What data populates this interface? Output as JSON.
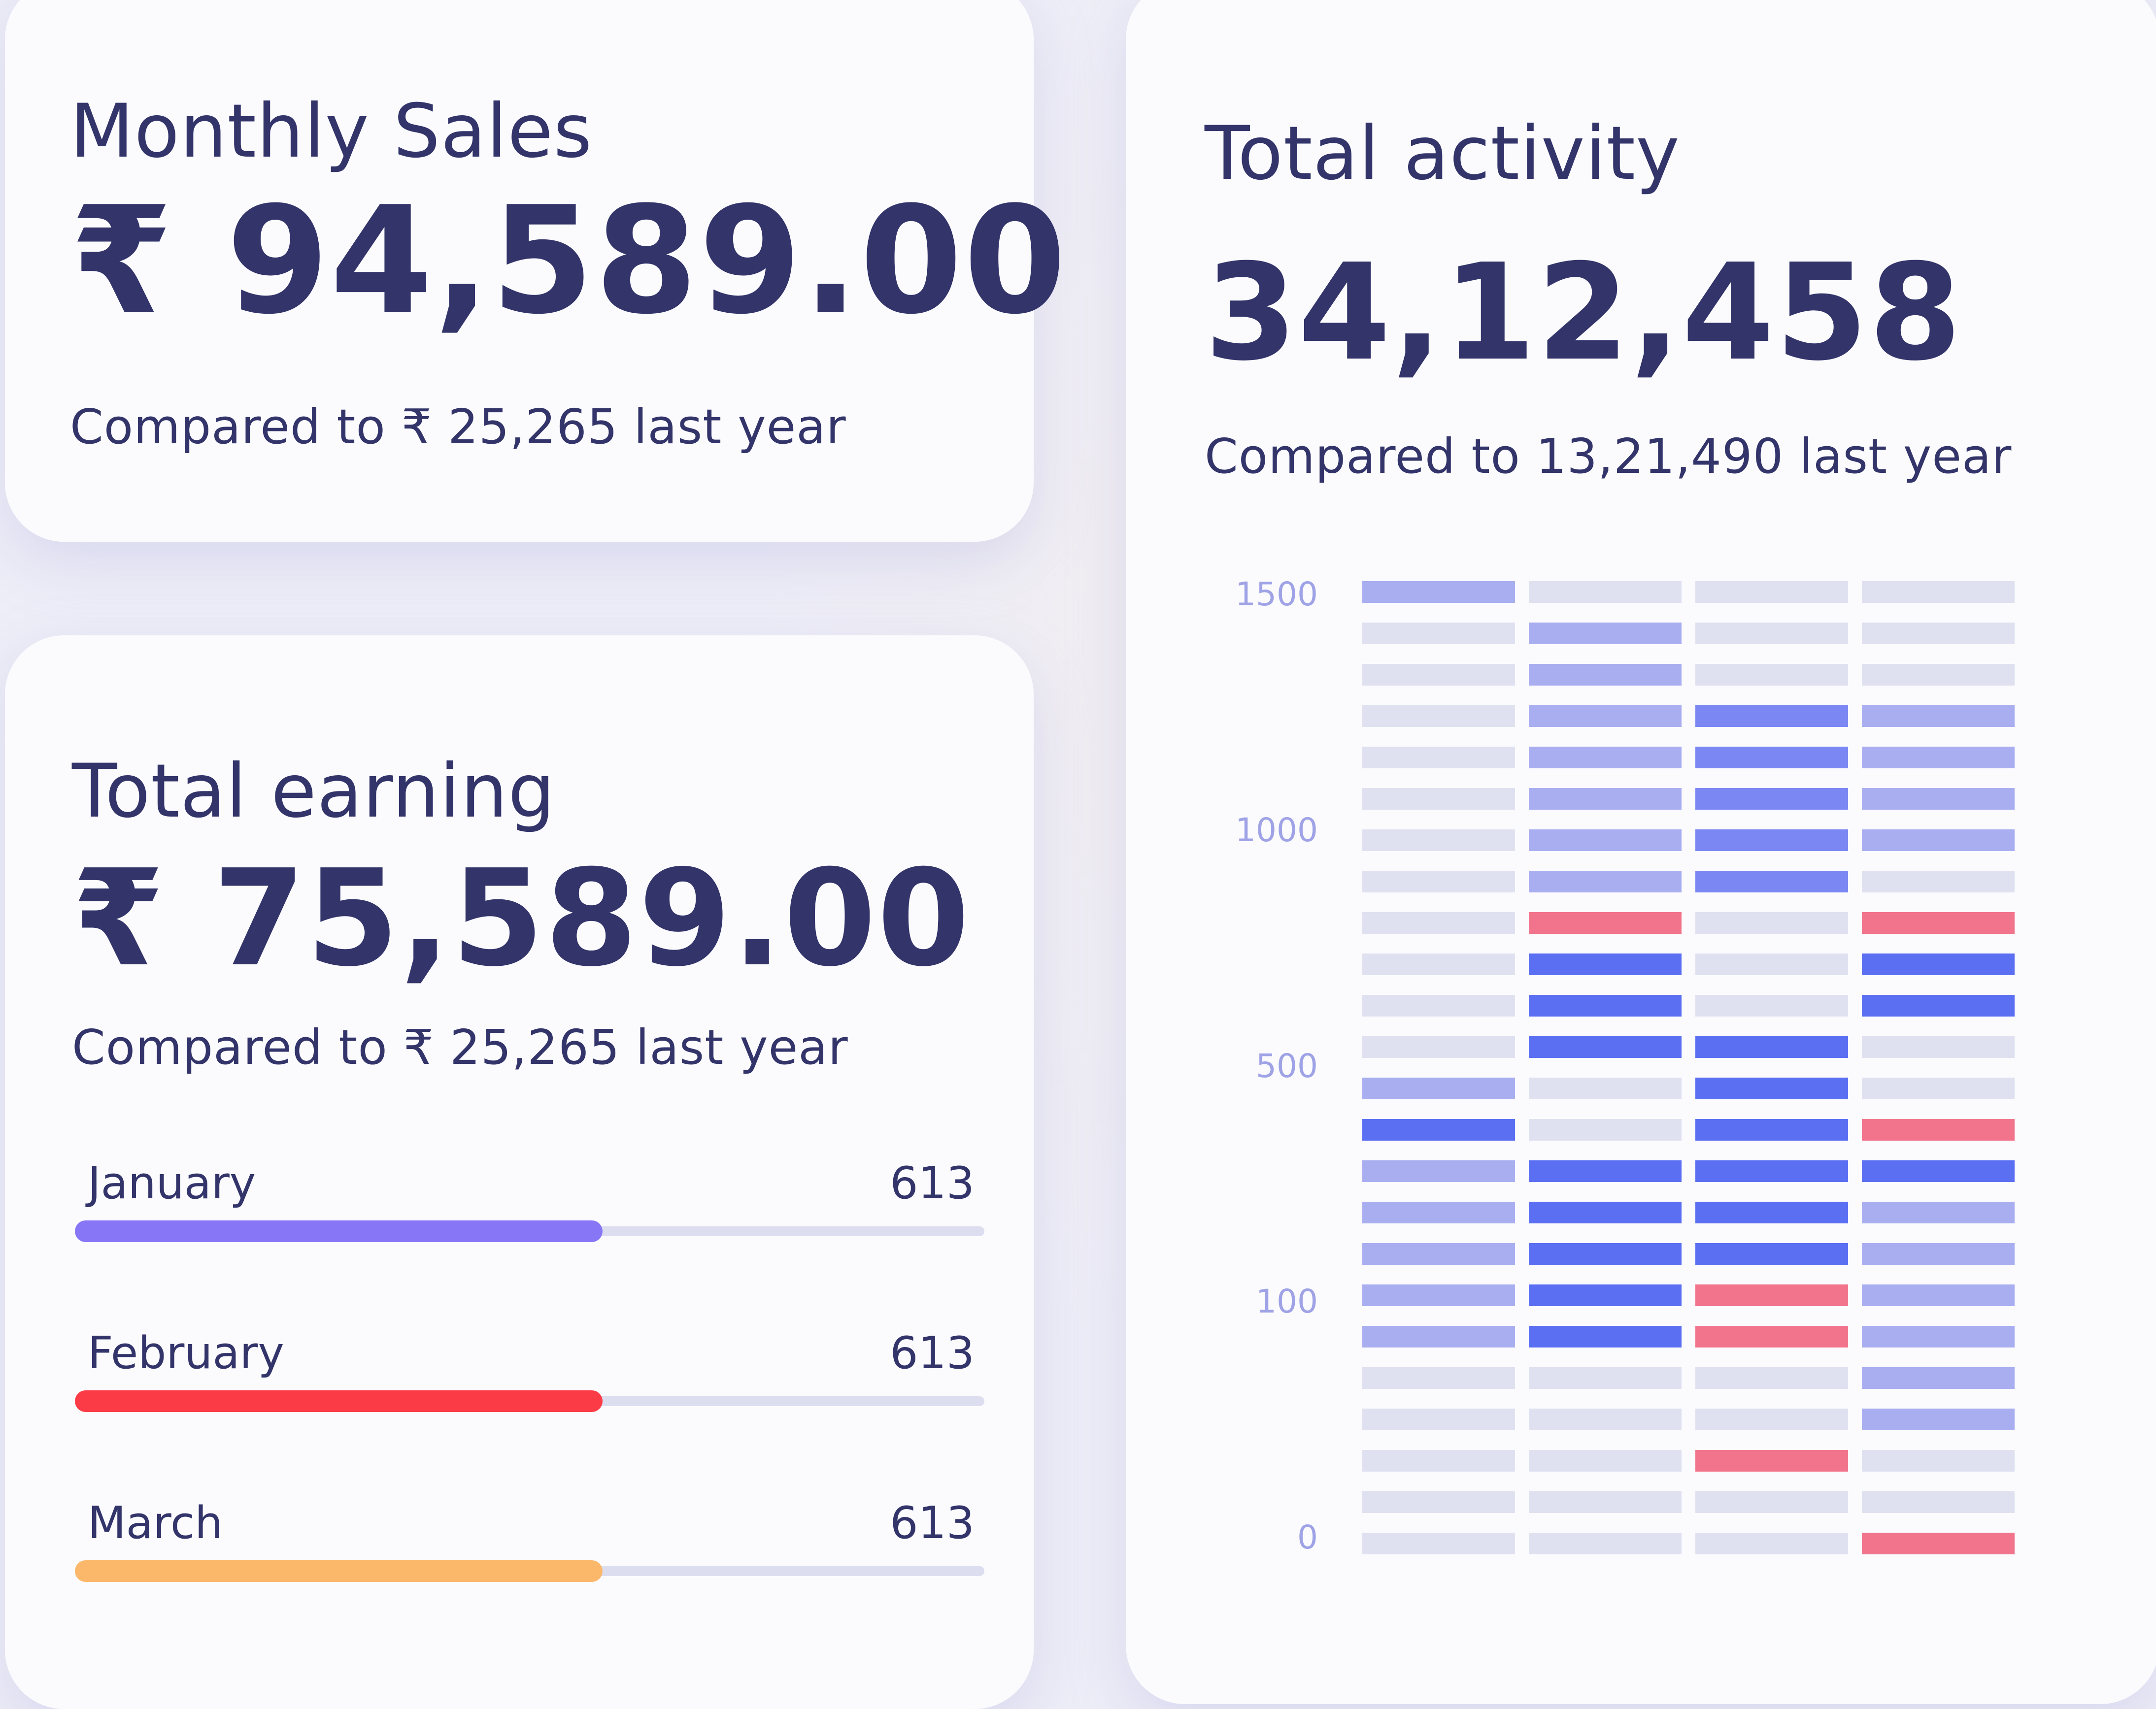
{
  "monthly_sales": {
    "title": "Monthly Sales",
    "amount": "₹ 94,589.00",
    "comparison": "Compared to ₹ 25,265 last year"
  },
  "total_earning": {
    "title": "Total earning",
    "amount": "₹ 75,589.00",
    "comparison": "Compared to ₹ 25,265 last year",
    "months": [
      {
        "name": "January",
        "value": "613",
        "progress": 0.58,
        "color": "#8777f7"
      },
      {
        "name": "February",
        "value": "613",
        "progress": 0.58,
        "color": "#fb3b45"
      },
      {
        "name": "March",
        "value": "613",
        "progress": 0.58,
        "color": "#fbb86a"
      }
    ]
  },
  "total_activity": {
    "title": "Total activity",
    "amount": "34,12,458",
    "comparison": "Compared to 13,21,490 last year"
  },
  "colors": {
    "empty": "#dfe1f0",
    "light": "#a9aef0",
    "medium": "#7b87f3",
    "strong": "#5b6ff2",
    "alert": "#f2748c"
  },
  "chart_data": {
    "type": "heatmap",
    "y_tick_labels": [
      "1500",
      "1000",
      "500",
      "100",
      "0"
    ],
    "columns": 4,
    "rows_top_to_bottom": 24,
    "legend": "none",
    "cells_top_to_bottom": [
      [
        "light",
        "empty",
        "empty",
        "empty"
      ],
      [
        "empty",
        "light",
        "empty",
        "empty"
      ],
      [
        "empty",
        "light",
        "empty",
        "empty"
      ],
      [
        "empty",
        "light",
        "medium",
        "light"
      ],
      [
        "empty",
        "light",
        "medium",
        "light"
      ],
      [
        "empty",
        "light",
        "medium",
        "light"
      ],
      [
        "empty",
        "light",
        "medium",
        "light"
      ],
      [
        "empty",
        "light",
        "medium",
        "empty"
      ],
      [
        "empty",
        "alert",
        "empty",
        "alert"
      ],
      [
        "empty",
        "strong",
        "empty",
        "strong"
      ],
      [
        "empty",
        "strong",
        "empty",
        "strong"
      ],
      [
        "empty",
        "strong",
        "strong",
        "empty"
      ],
      [
        "light",
        "empty",
        "strong",
        "empty"
      ],
      [
        "strong",
        "empty",
        "strong",
        "alert"
      ],
      [
        "light",
        "strong",
        "strong",
        "strong"
      ],
      [
        "light",
        "strong",
        "strong",
        "light"
      ],
      [
        "light",
        "strong",
        "strong",
        "light"
      ],
      [
        "light",
        "strong",
        "alert",
        "light"
      ],
      [
        "light",
        "strong",
        "alert",
        "light"
      ],
      [
        "empty",
        "empty",
        "empty",
        "light"
      ],
      [
        "empty",
        "empty",
        "empty",
        "light"
      ],
      [
        "empty",
        "empty",
        "alert",
        "empty"
      ],
      [
        "empty",
        "empty",
        "empty",
        "empty"
      ],
      [
        "empty",
        "empty",
        "empty",
        "alert"
      ]
    ]
  }
}
